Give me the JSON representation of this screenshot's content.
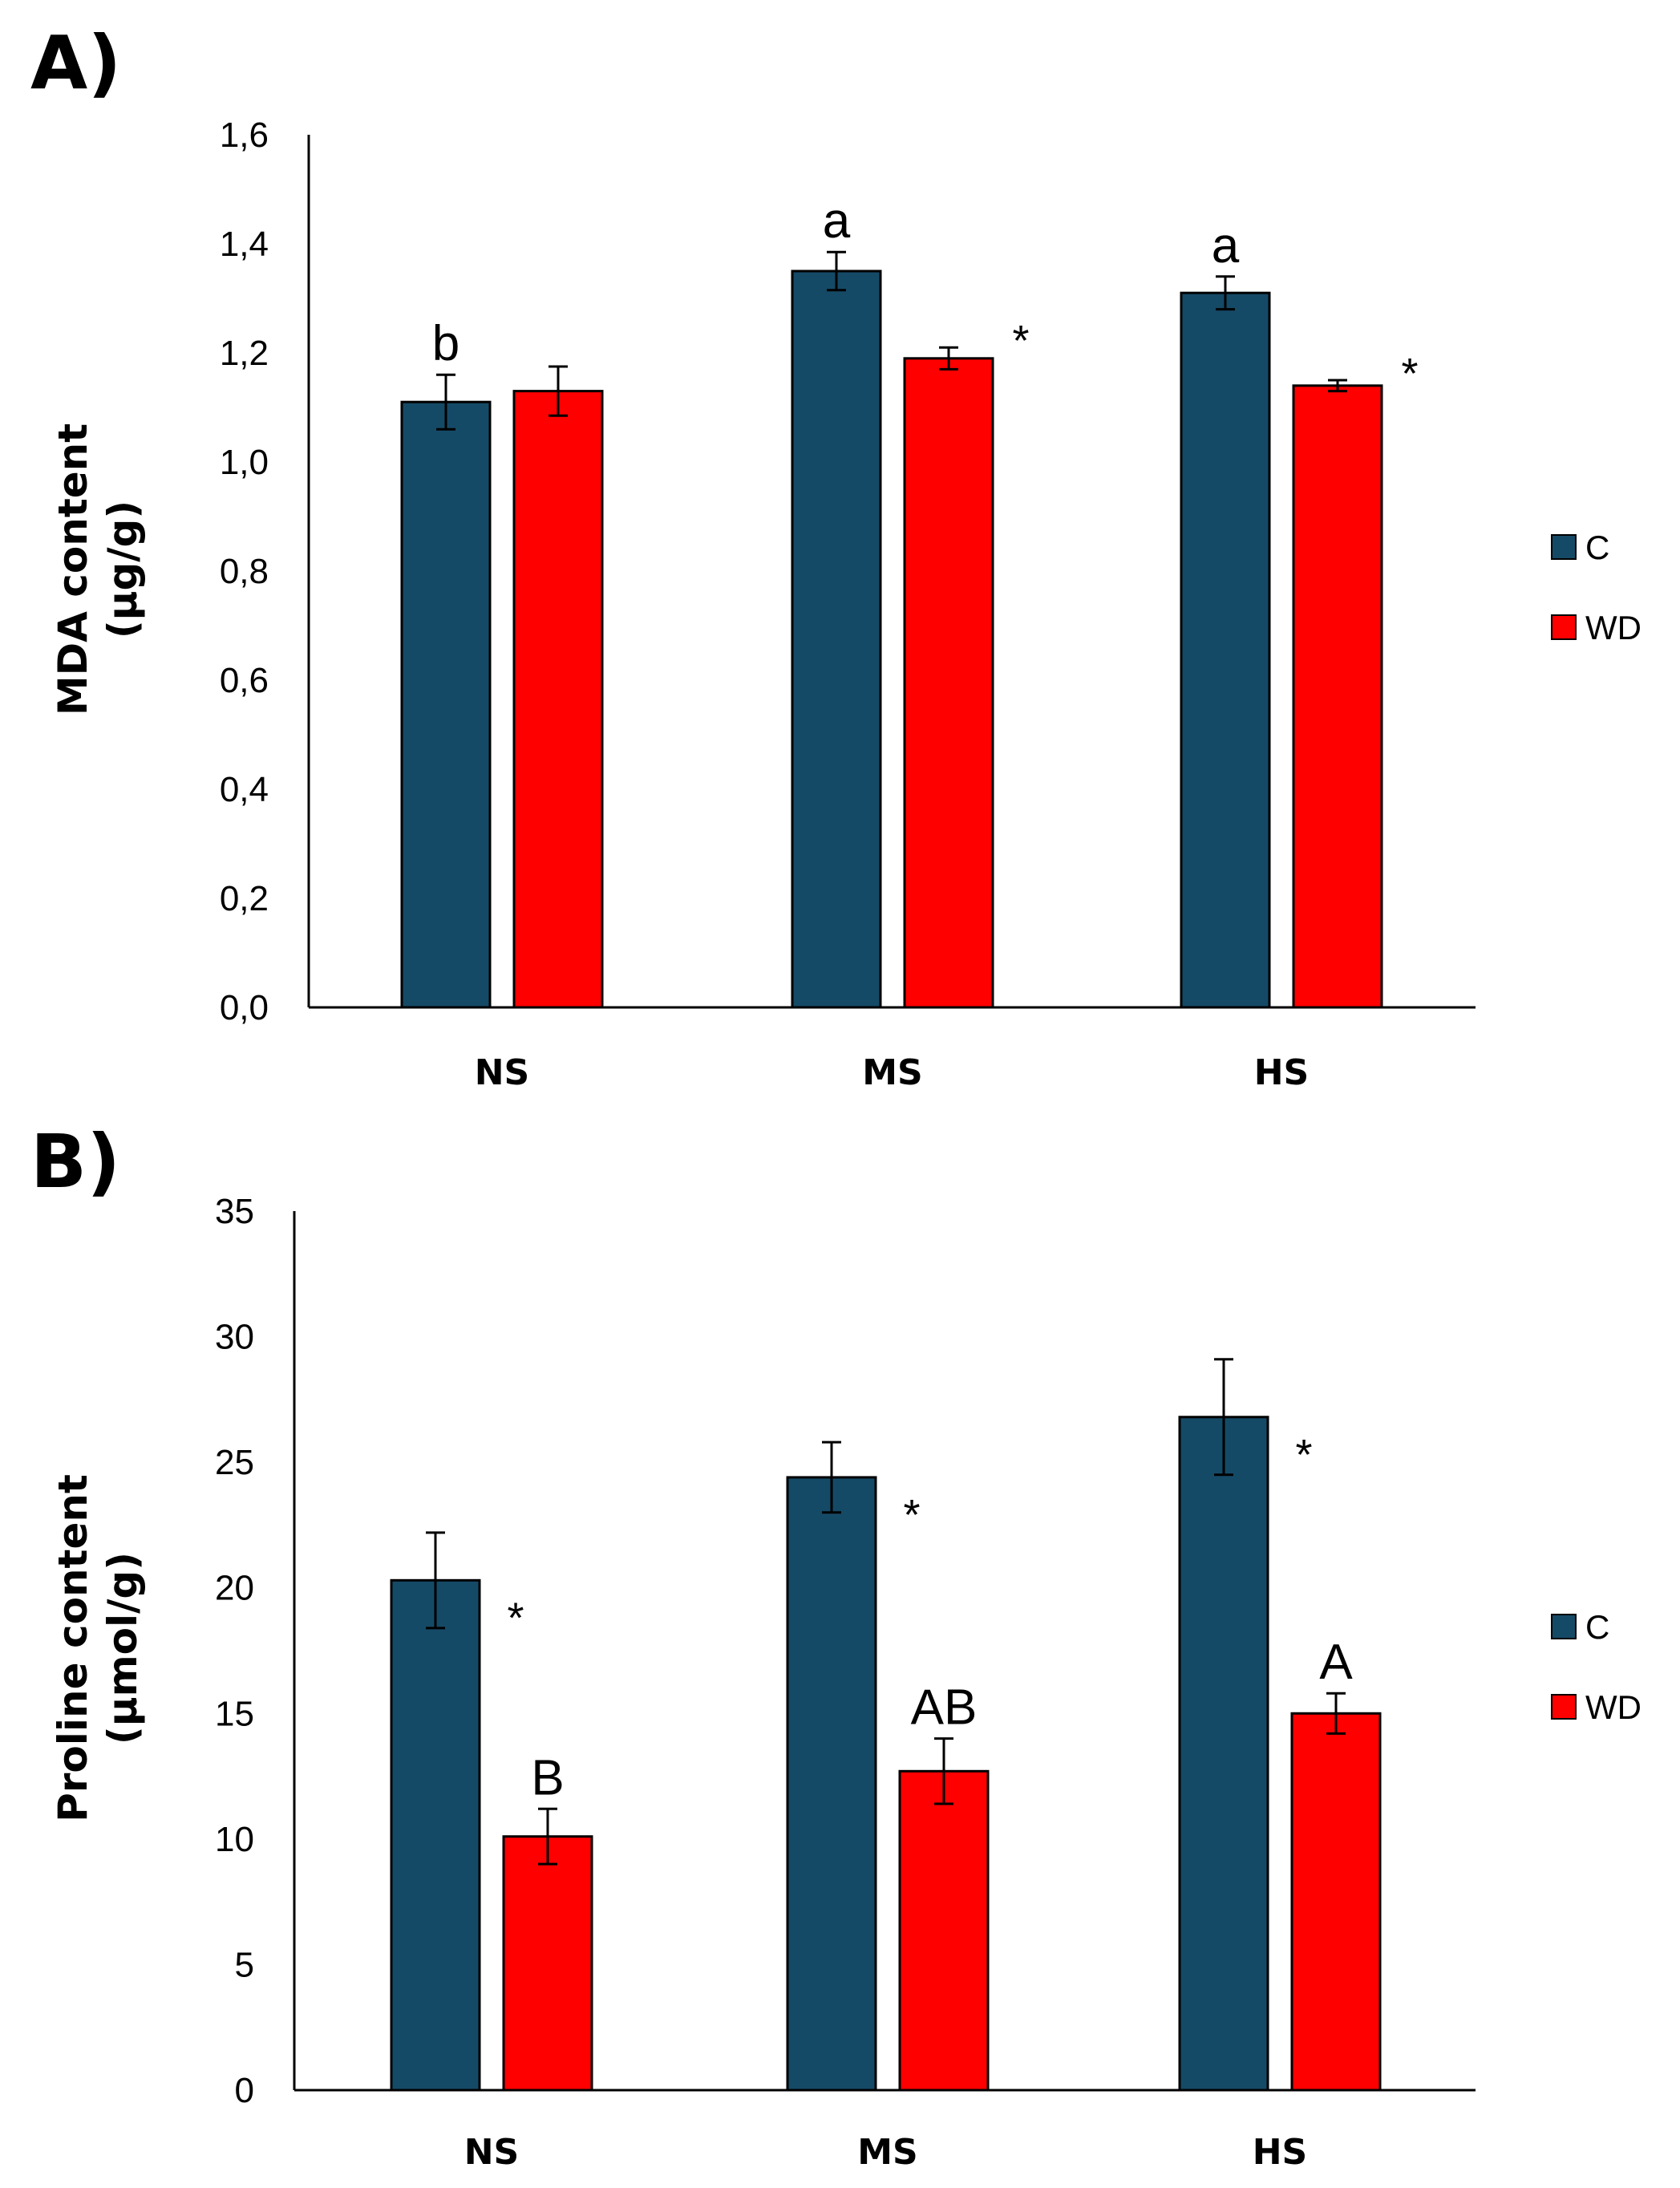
{
  "chart_data": [
    {
      "type": "bar",
      "panel_label": "A)",
      "ylabel_line1": "MDA content",
      "ylabel_line2": "(µg/g)",
      "categories": [
        "NS",
        "MS",
        "HS"
      ],
      "ylim": [
        0,
        1.6
      ],
      "yticks": [
        "0,0",
        "0,2",
        "0,4",
        "0,6",
        "0,8",
        "1,0",
        "1,2",
        "1,4",
        "1,6"
      ],
      "grid": false,
      "legend_position": "right",
      "series": [
        {
          "name": "C",
          "color": "#154a66",
          "values": [
            1.11,
            1.35,
            1.31
          ],
          "errors": [
            0.05,
            0.035,
            0.03
          ],
          "labels": [
            "b",
            "a",
            "a"
          ],
          "stars": [
            "",
            "",
            ""
          ]
        },
        {
          "name": "WD",
          "color": "#ff0000",
          "values": [
            1.13,
            1.19,
            1.14
          ],
          "errors": [
            0.045,
            0.02,
            0.01
          ],
          "labels": [
            "",
            "",
            ""
          ],
          "stars": [
            "",
            "*",
            "*"
          ]
        }
      ]
    },
    {
      "type": "bar",
      "panel_label": "B)",
      "ylabel_line1": "Proline content",
      "ylabel_line2": "(µmol/g)",
      "categories": [
        "NS",
        "MS",
        "HS"
      ],
      "ylim": [
        0,
        35
      ],
      "yticks": [
        "0",
        "5",
        "10",
        "15",
        "20",
        "25",
        "30",
        "35"
      ],
      "grid": false,
      "legend_position": "right",
      "series": [
        {
          "name": "C",
          "color": "#154a66",
          "values": [
            20.3,
            24.4,
            26.8
          ],
          "errors": [
            1.9,
            1.4,
            2.3
          ],
          "labels": [
            "",
            "",
            ""
          ],
          "stars": [
            "*",
            "*",
            "*"
          ]
        },
        {
          "name": "WD",
          "color": "#ff0000",
          "values": [
            10.1,
            12.7,
            15.0
          ],
          "errors": [
            1.1,
            1.3,
            0.8
          ],
          "labels": [
            "B",
            "AB",
            "A"
          ],
          "stars": [
            "",
            "",
            ""
          ]
        }
      ]
    }
  ]
}
